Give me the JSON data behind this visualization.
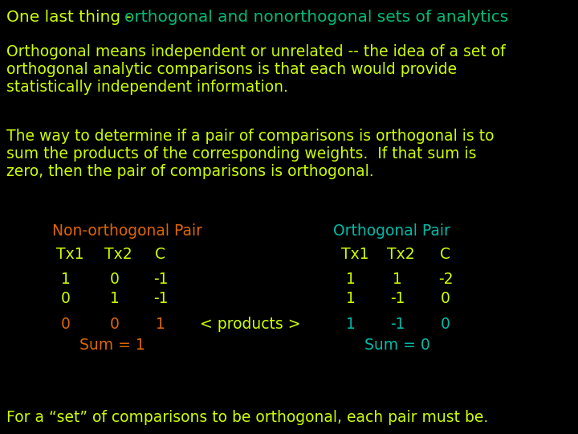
{
  "bg_color": "#000000",
  "title_prefix": "One last thing - ",
  "title_colored": "orthogonal and nonorthogonal sets of analytics",
  "title_color_prefix": "#ccff00",
  "title_color_highlight": "#00bb77",
  "para1_line1": "Orthogonal means independent or unrelated -- the idea of a set of",
  "para1_line2": "orthogonal analytic comparisons is that each would provide",
  "para1_line3": "statistically independent information.",
  "para2_line1": "The way to determine if a pair of comparisons is orthogonal is to",
  "para2_line2": "sum the products of the corresponding weights.  If that sum is",
  "para2_line3": "zero, then the pair of comparisons is orthogonal.",
  "para_color": "#ccff00",
  "nonortho_label": "Non-orthogonal Pair",
  "nonortho_label_color": "#dd6600",
  "ortho_label": "Orthogonal Pair",
  "ortho_label_color": "#00bbaa",
  "col_header_color": "#ccff00",
  "data_color": "#ccff00",
  "product_color_nonortho": "#dd6600",
  "product_color_ortho": "#00bbaa",
  "sum_color_nonortho": "#dd6600",
  "sum_color_ortho": "#00bbaa",
  "footer_color": "#ccff00",
  "footer": "For a “set” of comparisons to be orthogonal, each pair must be."
}
